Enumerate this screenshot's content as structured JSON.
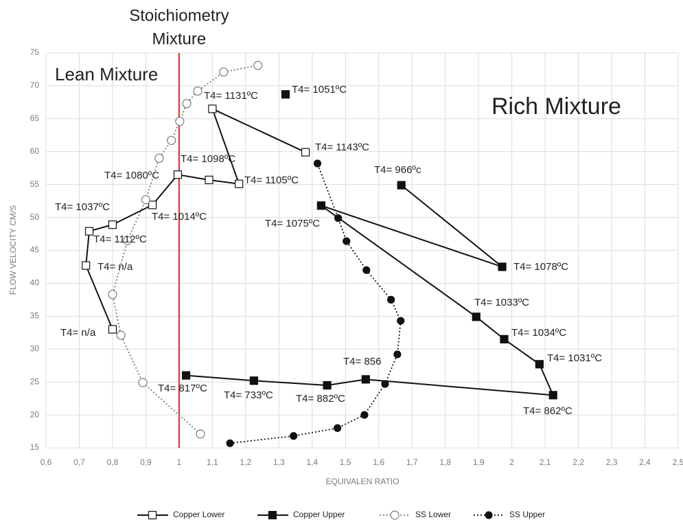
{
  "chart_data": {
    "type": "line",
    "xlabel": "EQUIVALEN RATIO",
    "ylabel": "FLOW VELOCITY CM/S",
    "xlim": [
      0.6,
      2.5
    ],
    "ylim": [
      15,
      75
    ],
    "xticks": [
      {
        "value": 0.6,
        "label": "0,6"
      },
      {
        "value": 0.7,
        "label": "0,7"
      },
      {
        "value": 0.8,
        "label": "0,8"
      },
      {
        "value": 0.9,
        "label": "0,9"
      },
      1,
      {
        "value": 1.1,
        "label": "1,1"
      },
      {
        "value": 1.2,
        "label": "1,2"
      },
      {
        "value": 1.3,
        "label": "1,3"
      },
      {
        "value": 1.4,
        "label": "1,4"
      },
      {
        "value": 1.5,
        "label": "1,5"
      },
      {
        "value": 1.6,
        "label": "1,6"
      },
      {
        "value": 1.7,
        "label": "1,7"
      },
      {
        "value": 1.8,
        "label": "1,8"
      },
      {
        "value": 1.9,
        "label": "1,9"
      },
      2,
      {
        "value": 2.1,
        "label": "2,1"
      },
      {
        "value": 2.2,
        "label": "2,2"
      },
      {
        "value": 2.3,
        "label": "2,3"
      },
      {
        "value": 2.4,
        "label": "2,4"
      },
      {
        "value": 2.5,
        "label": "2,5"
      }
    ],
    "yticks": [
      15,
      20,
      25,
      30,
      35,
      40,
      45,
      50,
      55,
      60,
      65,
      70,
      75
    ],
    "grid": true,
    "legend": "bottom",
    "series": [
      {
        "name": "Copper Lower",
        "color": "#111111",
        "marker": "square-open",
        "dash": false,
        "x": [
          0.8,
          0.72,
          0.73,
          0.8,
          0.92,
          0.996,
          1.09,
          1.18,
          1.1,
          1.38
        ],
        "values": [
          33.0,
          42.7,
          47.9,
          48.9,
          51.9,
          56.5,
          55.7,
          55.1,
          66.5,
          59.9
        ]
      },
      {
        "name": "Copper Upper",
        "color": "#111111",
        "marker": "square-filled",
        "dash": false,
        "x": [
          1.32,
          null,
          1.668,
          1.971,
          1.427,
          1.893,
          1.977,
          2.083,
          2.124,
          1.561,
          1.445,
          1.225,
          1.021
        ],
        "values": [
          68.7,
          null,
          54.9,
          42.5,
          51.8,
          34.9,
          31.5,
          27.7,
          23.0,
          25.4,
          24.5,
          25.2,
          26.0
        ]
      },
      {
        "name": "SS Lower",
        "color": "#777777",
        "marker": "circle-open",
        "dash": true,
        "x": [
          1.064,
          0.891,
          0.825,
          0.8,
          0.845,
          0.9,
          0.94,
          0.977,
          1.002,
          1.023,
          1.056,
          1.134,
          1.237
        ],
        "values": [
          17.1,
          24.9,
          32.1,
          38.3,
          46.5,
          52.7,
          59.0,
          61.7,
          64.6,
          67.3,
          69.2,
          72.1,
          73.1
        ]
      },
      {
        "name": "SS Upper",
        "color": "#111111",
        "marker": "circle-filled",
        "dash": true,
        "x": [
          1.153,
          1.344,
          1.476,
          1.557,
          1.619,
          1.656,
          1.666,
          1.637,
          1.563,
          1.503,
          1.478,
          1.416
        ],
        "values": [
          15.7,
          16.8,
          18.0,
          20.0,
          24.7,
          29.2,
          34.3,
          37.5,
          42.0,
          46.4,
          49.9,
          58.2
        ]
      }
    ],
    "vline": {
      "x": 1,
      "color": "#e3261f",
      "label": [
        "Stoichiometry",
        "Mixture"
      ]
    },
    "regions": [
      "Lean Mixture",
      "Rich Mixture"
    ],
    "annotations": [
      "T4= 1131ºC",
      "T4= 1051ºC",
      "T4= 1143ºC",
      "T4= 966ºc",
      "T4= 1098ºC",
      "T4= 1080ºC",
      "T4= 1105ºC",
      "T4= 1037ºC",
      "T4= 1014ºC",
      "T4= 1075ºC",
      "T4= 1112ºC",
      "T4= n/a",
      "T4= 1078ºC",
      "T4= 1033ºC",
      "T4= 1034ºC",
      "T4= n/a",
      "T4= 1031ºC",
      "T4= 856",
      "T4= 817ºC",
      "T4= 733ºC",
      "T4= 882ºC",
      "T4= 862ºC"
    ]
  }
}
